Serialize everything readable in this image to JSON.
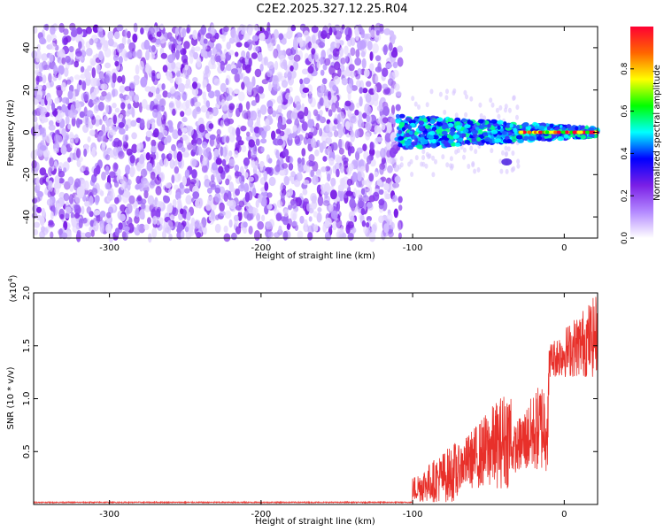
{
  "title": "C2E2.2025.327.12.25.R04",
  "chart_data": [
    {
      "type": "heatmap",
      "xlabel": "Height of straight line (km)",
      "ylabel": "Frequency (Hz)",
      "xlim": [
        -350,
        22
      ],
      "ylim": [
        -50,
        50
      ],
      "x_ticks": [
        -300,
        -200,
        -100,
        0
      ],
      "y_ticks": [
        -40,
        -20,
        0,
        20,
        40
      ],
      "noise_region_x": [
        -350,
        -108
      ],
      "signal_band": {
        "x_start": -110,
        "x_end": 22,
        "center_freq": 0,
        "halfwidth_start": 8,
        "halfwidth_end": 2
      },
      "colorbar": {
        "label": "Normalized spectral amplitude",
        "ticks": [
          0.0,
          0.2,
          0.4,
          0.6,
          0.8
        ],
        "range": [
          0,
          1
        ],
        "colors": [
          "#ffffff",
          "#b388ff",
          "#7a1fe6",
          "#0000ff",
          "#00ffff",
          "#00ff00",
          "#ffff00",
          "#ff6600",
          "#ff0033"
        ]
      }
    },
    {
      "type": "line",
      "xlabel": "Height of straight line (km)",
      "ylabel": "SNR (10 * v/v)",
      "y_multiplier_label": "(x10",
      "y_multiplier_exp": "4",
      "y_multiplier_close": ")",
      "xlim": [
        -350,
        22
      ],
      "ylim": [
        0,
        2.0
      ],
      "x_ticks": [
        -300,
        -200,
        -100,
        0
      ],
      "y_ticks": [
        0.5,
        1.0,
        1.5,
        2.0
      ],
      "y_tick_labels": [
        "0.5",
        "1.0",
        "1.5",
        "2.0"
      ],
      "color": "#e8302a",
      "series_segments": [
        {
          "x_from": -350,
          "x_to": -100,
          "base": 0.02,
          "spread": 0.01
        },
        {
          "x_from": -100,
          "x_to": -70,
          "base": 0.02,
          "spread": 0.6
        },
        {
          "x_from": -70,
          "x_to": -35,
          "base": 0.15,
          "spread": 1.0
        },
        {
          "x_from": -35,
          "x_to": -10,
          "base": 0.3,
          "spread": 1.0
        },
        {
          "x_from": -10,
          "x_to": 22,
          "base": 1.2,
          "spread": 0.8
        }
      ]
    }
  ]
}
